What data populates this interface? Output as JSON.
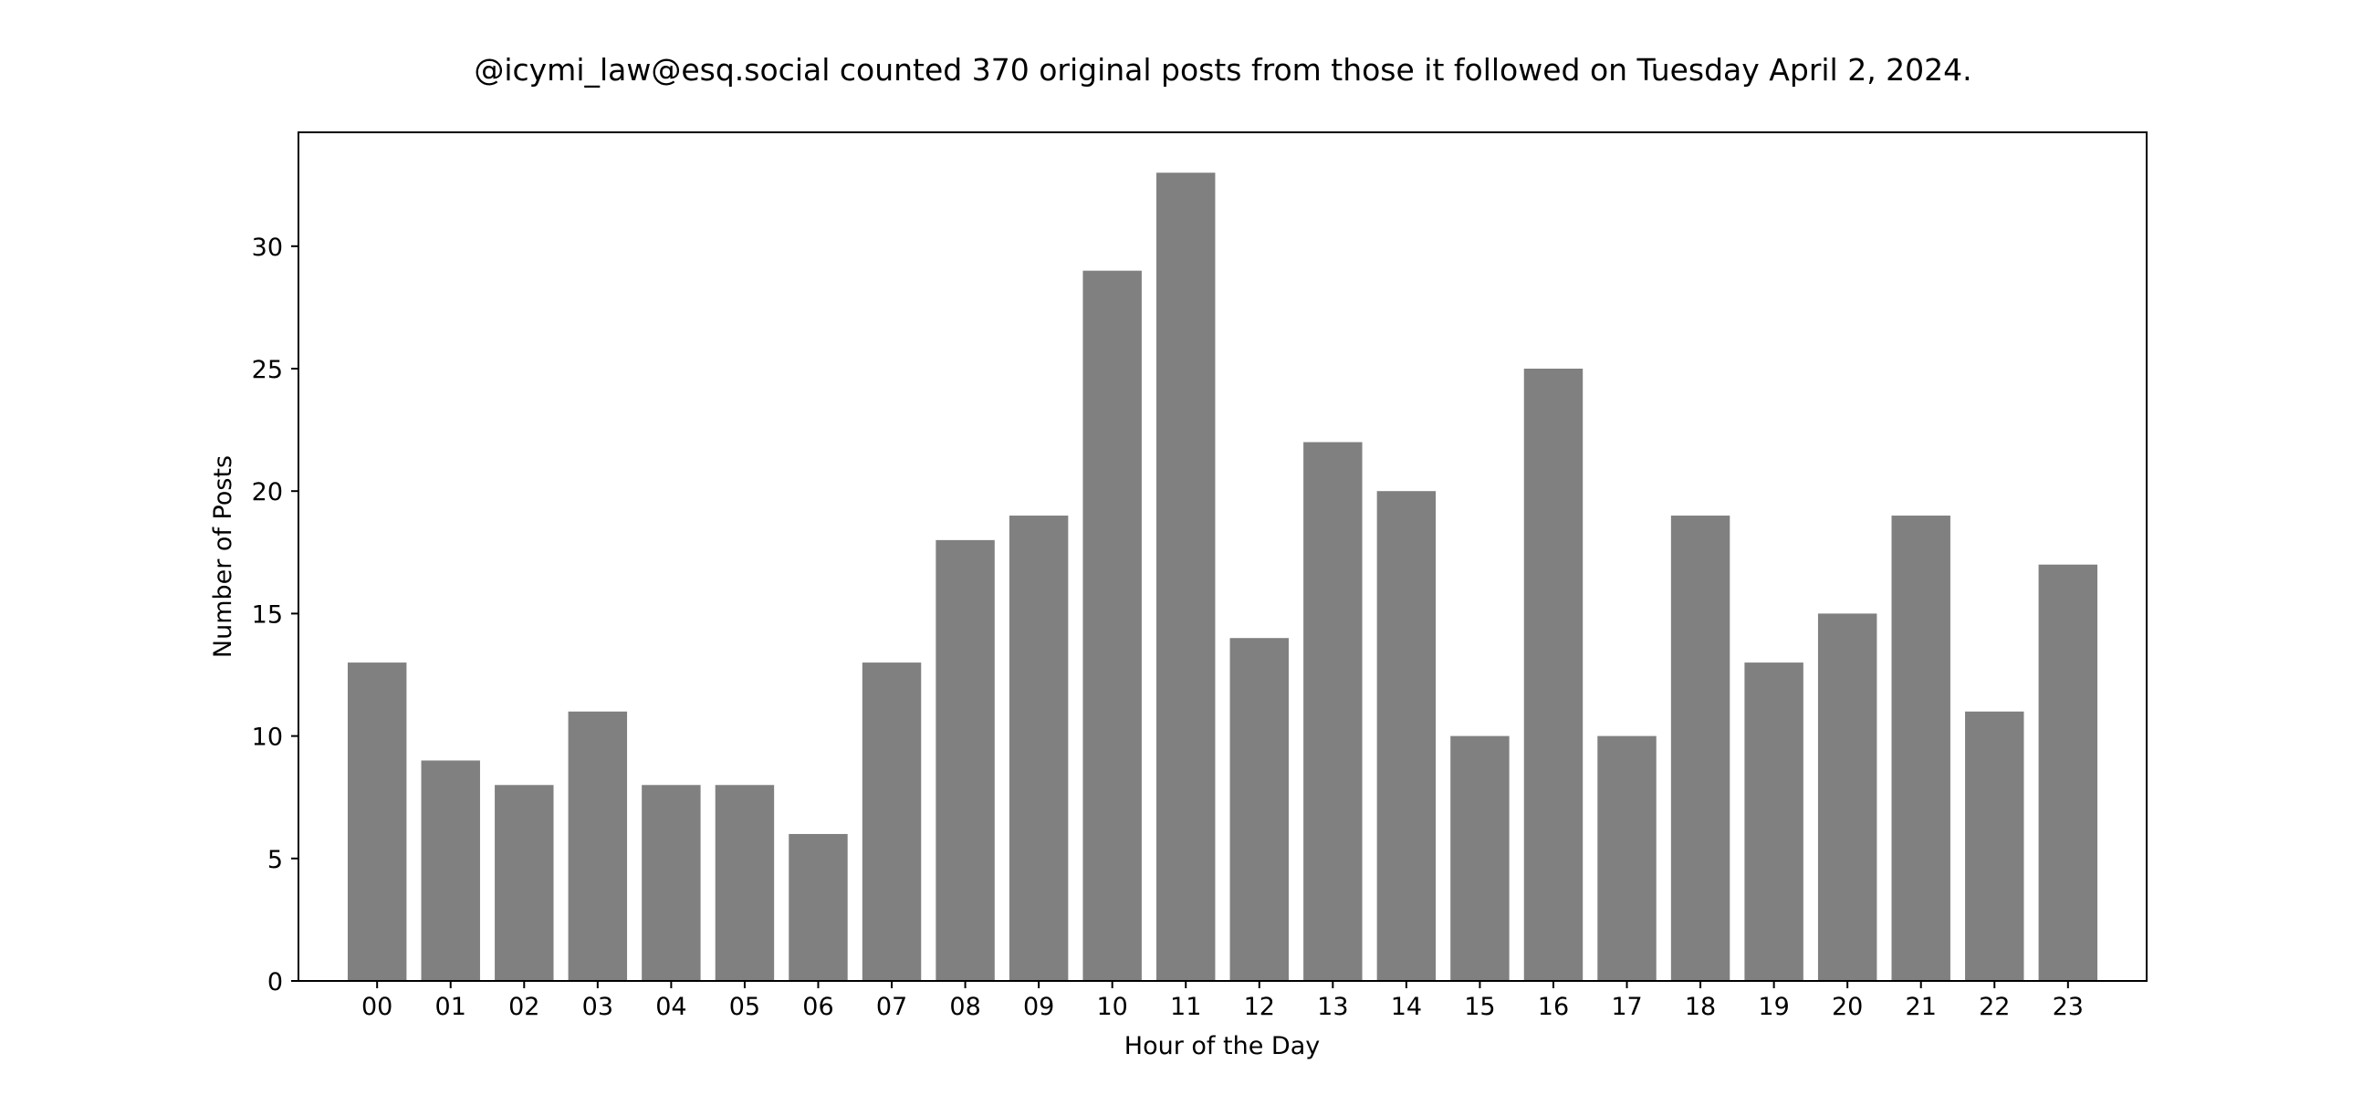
{
  "colors": {
    "bar": "#808080",
    "axes": "#000000",
    "background": "#ffffff"
  },
  "chart_data": {
    "type": "bar",
    "title": "@icymi_law@esq.social counted 370 original posts from those it followed on Tuesday April 2, 2024.",
    "xlabel": "Hour of the Day",
    "ylabel": "Number of Posts",
    "categories": [
      "00",
      "01",
      "02",
      "03",
      "04",
      "05",
      "06",
      "07",
      "08",
      "09",
      "10",
      "11",
      "12",
      "13",
      "14",
      "15",
      "16",
      "17",
      "18",
      "19",
      "20",
      "21",
      "22",
      "23"
    ],
    "values": [
      13,
      9,
      8,
      11,
      8,
      8,
      6,
      13,
      18,
      19,
      29,
      33,
      14,
      22,
      20,
      10,
      25,
      10,
      19,
      13,
      15,
      19,
      11,
      17
    ],
    "ylim": [
      0,
      34.65
    ],
    "yticks": [
      0,
      5,
      10,
      15,
      20,
      25,
      30
    ],
    "grid": false,
    "legend": "none"
  }
}
